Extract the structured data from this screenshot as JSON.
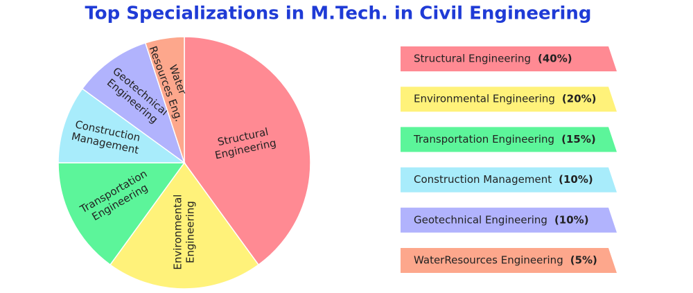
{
  "chart_data": {
    "type": "pie",
    "title": "Top Specializations in M.Tech. in Civil Engineering",
    "categories": [
      "Structural Engineering",
      "Environmental Engineering",
      "Transportation Engineering",
      "Construction Management",
      "Geotechnical Engineering",
      "WaterResources Engineering"
    ],
    "values": [
      40,
      20,
      15,
      10,
      10,
      5
    ],
    "value_labels": [
      "(40%)",
      "(20%)",
      "(15%)",
      "(10%)",
      "(10%)",
      "(5%)"
    ],
    "slice_labels": [
      [
        "Structural",
        "Engineering"
      ],
      [
        "Environmental",
        "Engineering"
      ],
      [
        "Transportation",
        "Engineering"
      ],
      [
        "Construction",
        "Management"
      ],
      [
        "Geotechnical",
        "Engineering"
      ],
      [
        "Water",
        "Resources Eng."
      ]
    ],
    "colors": [
      "#ff8a93",
      "#fff27a",
      "#5cf59a",
      "#a8ecfb",
      "#b1b3fd",
      "#fda78c"
    ]
  }
}
